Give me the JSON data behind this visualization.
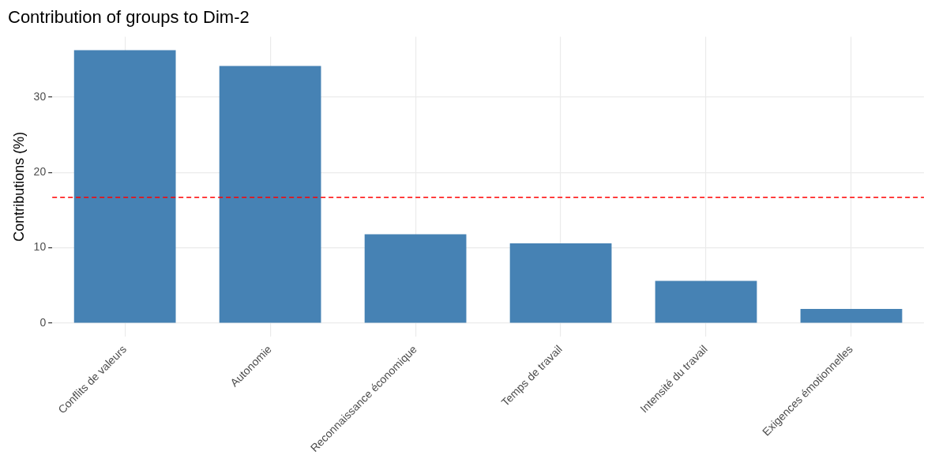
{
  "chart_data": {
    "type": "bar",
    "title": "Contribution of groups to Dim-2",
    "ylabel": "Contributions (%)",
    "categories": [
      "Conflits de valeurs",
      "Autonomie",
      "Reconnaissance économique",
      "Temps de travail",
      "Intensité du travail",
      "Exigences émotionnelles"
    ],
    "values": [
      36.2,
      34.1,
      11.8,
      10.6,
      5.6,
      1.9
    ],
    "color": "#4682b4",
    "ylim": [
      -1.8,
      38
    ],
    "yticks": [
      0,
      10,
      20,
      30
    ],
    "grid": true,
    "ref_lines": [
      {
        "axis": "y",
        "value": 16.7,
        "color": "#ff0000",
        "line_style": "dashed"
      }
    ]
  }
}
